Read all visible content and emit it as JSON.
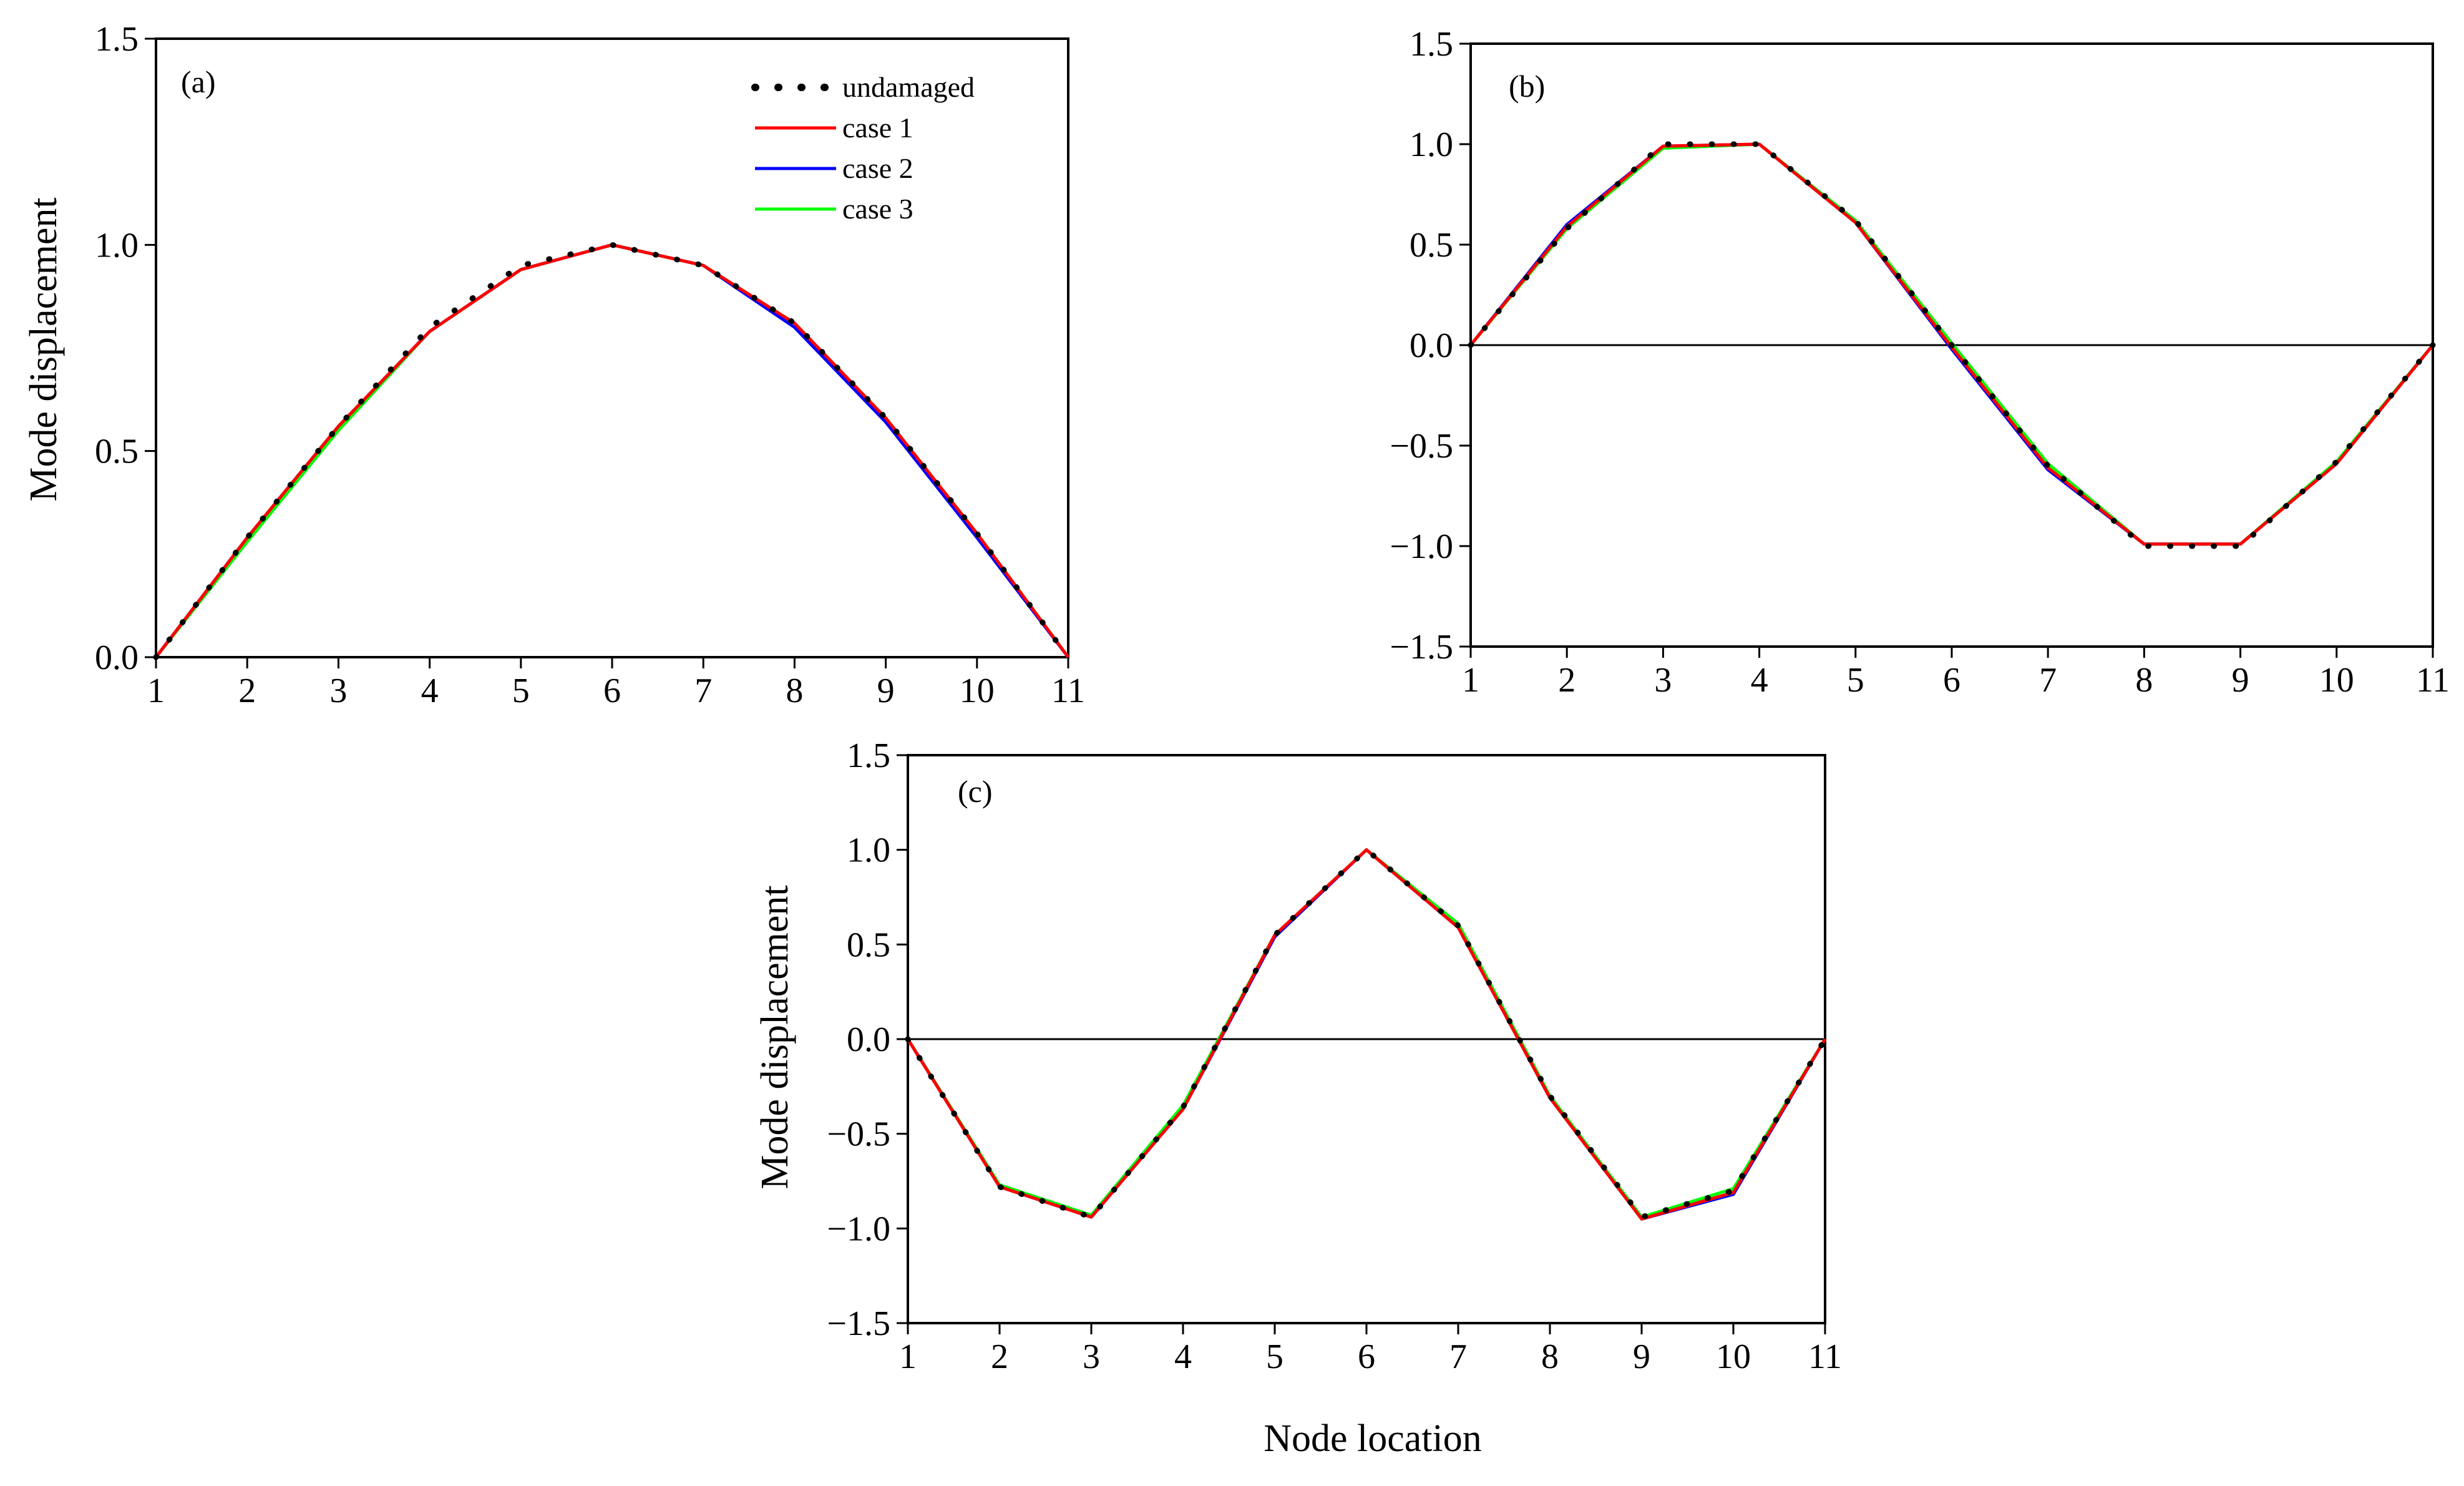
{
  "colors": {
    "undamaged": "#000000",
    "case1": "#ff0000",
    "case2": "#0000ff",
    "case3": "#00ff00",
    "axis": "#000000"
  },
  "legend": [
    "undamaged",
    "case 1",
    "case 2",
    "case 3"
  ],
  "xlabel": "Node location",
  "chart_data": [
    {
      "type": "line",
      "panel": "(a)",
      "ylabel": "Mode displacement",
      "x": [
        1,
        2,
        3,
        4,
        5,
        6,
        7,
        8,
        9,
        10,
        11
      ],
      "xlim": [
        1,
        11
      ],
      "ylim": [
        0.0,
        1.5
      ],
      "xticks": [
        "1",
        "2",
        "3",
        "4",
        "5",
        "6",
        "7",
        "8",
        "9",
        "10",
        "11"
      ],
      "yticks": [
        "0.0",
        "0.5",
        "1.0",
        "1.5"
      ],
      "zero_line": false,
      "series": [
        {
          "name": "undamaged",
          "values": [
            0,
            0.29,
            0.56,
            0.8,
            0.95,
            1.0,
            0.95,
            0.81,
            0.58,
            0.3,
            0
          ]
        },
        {
          "name": "case 1",
          "values": [
            0,
            0.29,
            0.56,
            0.79,
            0.94,
            1.0,
            0.95,
            0.81,
            0.58,
            0.3,
            0
          ]
        },
        {
          "name": "case 2",
          "values": [
            0,
            0.29,
            0.56,
            0.79,
            0.94,
            1.0,
            0.95,
            0.8,
            0.57,
            0.29,
            0
          ]
        },
        {
          "name": "case 3",
          "values": [
            0,
            0.28,
            0.55,
            0.79,
            0.94,
            1.0,
            0.95,
            0.81,
            0.58,
            0.3,
            0
          ]
        }
      ]
    },
    {
      "type": "line",
      "panel": "(b)",
      "ylabel": "",
      "x": [
        1,
        2,
        3,
        4,
        5,
        6,
        7,
        8,
        9,
        10,
        11
      ],
      "xlim": [
        1,
        11
      ],
      "ylim": [
        -1.5,
        1.5
      ],
      "xticks": [
        "1",
        "2",
        "3",
        "4",
        "5",
        "6",
        "7",
        "8",
        "9",
        "10",
        "11"
      ],
      "yticks": [
        "−1.5",
        "−1.0",
        "−0.5",
        "0.0",
        "0.5",
        "1.0",
        "1.5"
      ],
      "zero_line": true,
      "series": [
        {
          "name": "undamaged",
          "values": [
            0,
            0.58,
            1.0,
            1.0,
            0.62,
            0.0,
            -0.6,
            -1.0,
            -1.0,
            -0.58,
            0
          ]
        },
        {
          "name": "case 1",
          "values": [
            0,
            0.59,
            0.99,
            1.0,
            0.61,
            -0.01,
            -0.61,
            -0.99,
            -0.99,
            -0.59,
            0
          ]
        },
        {
          "name": "case 2",
          "values": [
            0,
            0.6,
            0.99,
            1.0,
            0.61,
            -0.02,
            -0.62,
            -0.99,
            -0.99,
            -0.59,
            0
          ]
        },
        {
          "name": "case 3",
          "values": [
            0,
            0.58,
            0.98,
            1.0,
            0.62,
            0.01,
            -0.59,
            -0.99,
            -0.99,
            -0.58,
            0
          ]
        }
      ]
    },
    {
      "type": "line",
      "panel": "(c)",
      "ylabel": "Mode displacement",
      "x": [
        1,
        2,
        3,
        4,
        5,
        6,
        7,
        8,
        9,
        10,
        11
      ],
      "xlim": [
        1,
        11
      ],
      "ylim": [
        -1.5,
        1.5
      ],
      "xticks": [
        "1",
        "2",
        "3",
        "4",
        "5",
        "6",
        "7",
        "8",
        "9",
        "10",
        "11"
      ],
      "yticks": [
        "−1.5",
        "−1.0",
        "−0.5",
        "0.0",
        "0.5",
        "1.0",
        "1.5"
      ],
      "zero_line": true,
      "series": [
        {
          "name": "undamaged",
          "values": [
            0,
            -0.78,
            -0.94,
            -0.36,
            0.55,
            1.0,
            0.6,
            -0.3,
            -0.94,
            -0.8,
            0
          ]
        },
        {
          "name": "case 1",
          "values": [
            0,
            -0.78,
            -0.94,
            -0.37,
            0.55,
            1.0,
            0.59,
            -0.31,
            -0.95,
            -0.81,
            0
          ]
        },
        {
          "name": "case 2",
          "values": [
            0,
            -0.78,
            -0.94,
            -0.37,
            0.54,
            1.0,
            0.59,
            -0.31,
            -0.95,
            -0.82,
            0
          ]
        },
        {
          "name": "case 3",
          "values": [
            0,
            -0.77,
            -0.93,
            -0.35,
            0.55,
            1.0,
            0.61,
            -0.3,
            -0.94,
            -0.79,
            0
          ]
        }
      ]
    }
  ]
}
